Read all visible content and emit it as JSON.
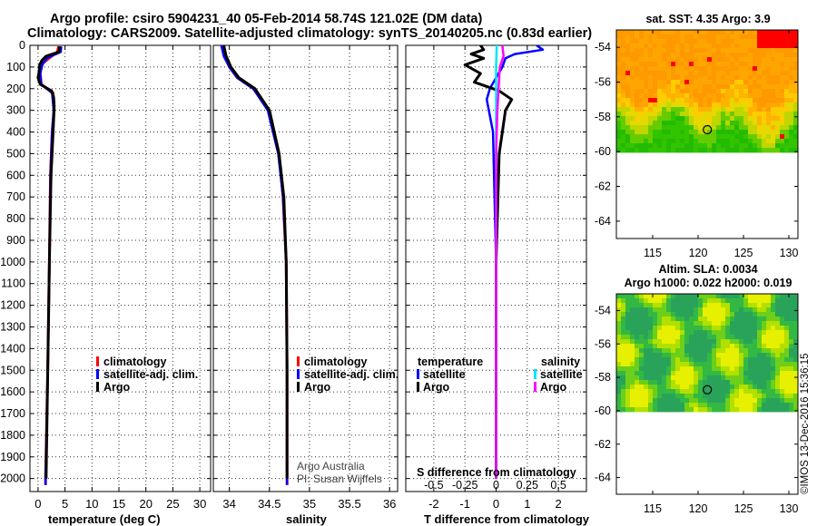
{
  "title": {
    "line1": "Argo profile: csiro 5904231_40 05-Feb-2014 58.74S 121.02E (DM data)",
    "line2": "Climatology: CARS2009. Satellite-adjusted climatology: synTS_20140205.nc (0.83d earlier)"
  },
  "colors": {
    "climatology": "#ff0000",
    "satellite": "#0000ff",
    "argo": "#000000",
    "sal_satellite": "#00e5ff",
    "sal_argo": "#ff00ff"
  },
  "depth_axis": {
    "ticks": [
      0,
      100,
      200,
      300,
      400,
      500,
      600,
      700,
      800,
      900,
      1000,
      1100,
      1200,
      1300,
      1400,
      1500,
      1600,
      1700,
      1800,
      1900,
      2000
    ],
    "max": 2060
  },
  "chart_data": [
    {
      "type": "line",
      "name": "temperature",
      "xlabel": "temperature (deg C)",
      "ylabel": "depth",
      "xlim": [
        -1.5,
        32
      ],
      "xticks": [
        0,
        5,
        10,
        15,
        20,
        25,
        30
      ],
      "legend": {
        "position": "bottom-right",
        "items": [
          "climatology",
          "satellite-adj. clim.",
          "Argo"
        ]
      },
      "series": [
        {
          "name": "climatology",
          "color": "#ff0000",
          "depth": [
            5,
            30,
            60,
            90,
            130,
            180,
            220,
            300,
            400,
            600,
            1000,
            1500,
            2000,
            2030
          ],
          "values": [
            3.8,
            3.6,
            2.0,
            0.5,
            0.4,
            0.6,
            2.8,
            3.0,
            2.6,
            2.3,
            2.1,
            1.8,
            1.4,
            1.4
          ]
        },
        {
          "name": "satellite-adj. clim.",
          "color": "#0000ff",
          "depth": [
            5,
            30,
            60,
            90,
            130,
            180,
            220,
            300,
            400,
            600,
            1000,
            1500,
            2000,
            2030
          ],
          "values": [
            4.3,
            4.2,
            1.6,
            0.8,
            0.4,
            0.6,
            2.6,
            2.9,
            2.6,
            2.3,
            2.1,
            1.8,
            1.4,
            1.4
          ]
        },
        {
          "name": "Argo",
          "color": "#000000",
          "depth": [
            5,
            30,
            50,
            70,
            90,
            120,
            150,
            180,
            210,
            240,
            280,
            400,
            600,
            1000,
            1500,
            2000
          ],
          "values": [
            4.0,
            3.9,
            1.5,
            0.7,
            0.3,
            0.2,
            0.0,
            0.4,
            2.5,
            2.9,
            3.0,
            2.8,
            2.4,
            2.1,
            1.8,
            1.5
          ]
        }
      ]
    },
    {
      "type": "line",
      "name": "salinity",
      "xlabel": "salinity",
      "ylabel": "depth",
      "xlim": [
        33.8,
        36.1
      ],
      "xticks": [
        34,
        34.5,
        35,
        35.5,
        36
      ],
      "legend": {
        "position": "bottom-right",
        "items": [
          "climatology",
          "satellite-adj. clim.",
          "Argo"
        ]
      },
      "annotation": [
        "Argo Australia",
        "PI: Susan Wijffels"
      ],
      "series": [
        {
          "name": "climatology",
          "color": "#ff0000",
          "depth": [
            0,
            50,
            100,
            150,
            200,
            300,
            500,
            700,
            1000,
            1500,
            2000,
            2030
          ],
          "values": [
            33.92,
            33.95,
            34.0,
            34.1,
            34.3,
            34.5,
            34.62,
            34.67,
            34.71,
            34.72,
            34.72,
            34.72
          ]
        },
        {
          "name": "satellite-adj. clim.",
          "color": "#0000ff",
          "depth": [
            0,
            50,
            100,
            150,
            200,
            300,
            500,
            700,
            1000,
            1500,
            2000,
            2030
          ],
          "values": [
            33.9,
            33.93,
            34.0,
            34.1,
            34.3,
            34.48,
            34.61,
            34.67,
            34.71,
            34.72,
            34.72,
            34.72
          ]
        },
        {
          "name": "Argo",
          "color": "#000000",
          "depth": [
            0,
            50,
            100,
            150,
            200,
            300,
            500,
            700,
            1000,
            1500,
            2000
          ],
          "values": [
            33.93,
            33.96,
            34.02,
            34.12,
            34.32,
            34.5,
            34.62,
            34.68,
            34.71,
            34.72,
            34.72
          ]
        }
      ]
    },
    {
      "type": "line",
      "name": "differences",
      "xlabel": "T difference from climatology",
      "xlim": [
        -2.9,
        2.9
      ],
      "xticks": [
        -2,
        -1,
        0,
        1,
        2
      ],
      "xtick_labels": [
        "-2",
        "-1",
        "0",
        "1",
        "2"
      ],
      "secondary_xticks": [
        -0.5,
        -0.25,
        0,
        0.25,
        0.5
      ],
      "secondary_xtick_labels": [
        "-0.5",
        "-0.25",
        "0",
        "0.25",
        "0.5"
      ],
      "secondary_xlim": [
        -0.725,
        0.725
      ],
      "secondary_xlabel": "S difference from climatology",
      "legend": {
        "position": "bottom",
        "left_title": "temperature",
        "right_title": "salinity",
        "left_items": [
          "satellite",
          "Argo"
        ],
        "right_items": [
          "satellite",
          "Argo"
        ]
      },
      "series": [
        {
          "name": "temperature satellite",
          "color": "#0000ff",
          "depth": [
            0,
            20,
            40,
            60,
            100,
            150,
            200,
            250,
            400,
            1000,
            2000
          ],
          "values": [
            1.3,
            1.5,
            0.6,
            0.3,
            0.2,
            0.0,
            -0.2,
            -0.3,
            -0.1,
            0.0,
            0.0
          ]
        },
        {
          "name": "temperature Argo",
          "color": "#000000",
          "depth": [
            0,
            20,
            40,
            60,
            90,
            130,
            170,
            210,
            250,
            300,
            400,
            500,
            1000,
            2000
          ],
          "values": [
            -0.5,
            -0.4,
            -0.8,
            -0.4,
            -1.0,
            -0.5,
            -0.7,
            0.1,
            0.5,
            0.3,
            0.2,
            0.1,
            0.0,
            0.0
          ]
        },
        {
          "name": "salinity satellite",
          "color": "#00e5ff",
          "depth": [
            0,
            100,
            200,
            500,
            1000,
            2000
          ],
          "values": [
            0.005,
            0.0,
            0.0,
            0.0,
            0.0,
            0.0
          ]
        },
        {
          "name": "salinity Argo",
          "color": "#ff00ff",
          "depth": [
            0,
            50,
            100,
            200,
            300,
            500,
            1000,
            2000
          ],
          "values": [
            0.05,
            0.06,
            0.03,
            0.02,
            0.01,
            0.0,
            0.0,
            0.0
          ]
        }
      ]
    },
    {
      "type": "heatmap",
      "name": "sst-map",
      "title": "sat. SST: 4.35 Argo: 3.9",
      "xlim": [
        111,
        131
      ],
      "ylim": [
        -65,
        -53
      ],
      "xticks": [
        115,
        120,
        125,
        130
      ],
      "yticks": [
        -54,
        -56,
        -58,
        -60,
        -62,
        -64
      ],
      "argo_position": [
        121.02,
        -58.74
      ]
    },
    {
      "type": "heatmap",
      "name": "sla-map",
      "title": "Altim. SLA: 0.0034",
      "subtitle": "Argo h1000: 0.022 h2000: 0.019",
      "xlim": [
        111,
        131
      ],
      "ylim": [
        -65,
        -53
      ],
      "xticks": [
        115,
        120,
        125,
        130
      ],
      "yticks": [
        -54,
        -56,
        -58,
        -60,
        -62,
        -64
      ],
      "argo_position": [
        121.02,
        -58.74
      ]
    }
  ],
  "credit": "©IMOS 13-Dec-2016 15:36:15"
}
